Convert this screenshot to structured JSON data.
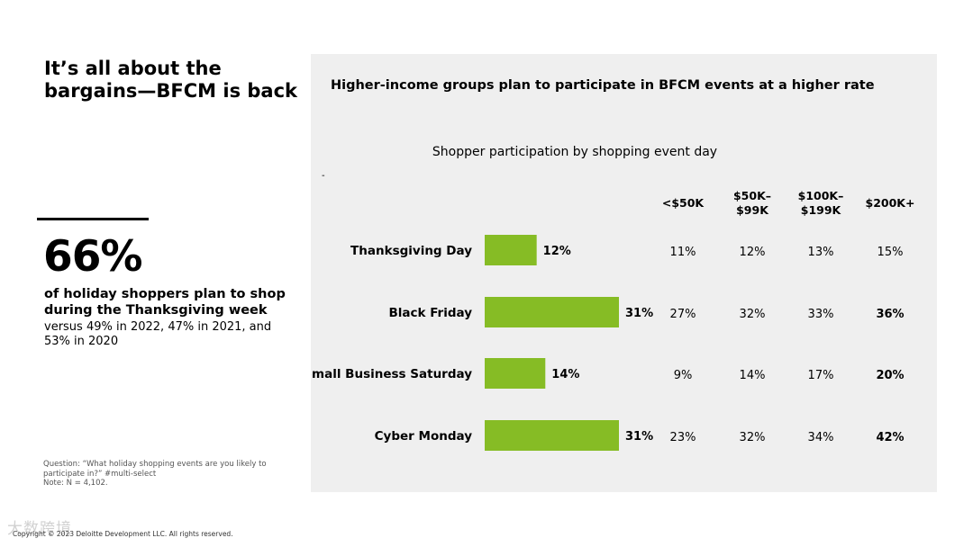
{
  "slide": {
    "title": "It’s all about the bargains—BFCM is back",
    "stat": "66%",
    "stat_lead": "of holiday shoppers plan to shop during the Thanksgiving week",
    "stat_sub": "versus 49% in 2022, 47% in 2021, and 53% in 2020",
    "note_question": "Question: “What holiday shopping events are you likely to participate in?” #multi-select",
    "note_n": "Note: N = 4,102.",
    "copyright": "Copyright © 2023 Deloitte Development LLC. All rights reserved.",
    "watermark": "大数跨境"
  },
  "panel": {
    "title": "Higher-income groups plan to participate in BFCM events at a higher rate",
    "dash": "-"
  },
  "chart_data": {
    "type": "bar",
    "orientation": "horizontal",
    "title": "Shopper participation by shopping event day",
    "categories": [
      "Thanksgiving Day",
      "Black Friday",
      "Small Business Saturday",
      "Cyber Monday"
    ],
    "values": [
      12,
      31,
      14,
      31
    ],
    "value_labels": [
      "12%",
      "31%",
      "14%",
      "31%"
    ],
    "xlim": [
      0,
      31
    ],
    "bar_color": "#86bc25",
    "table": {
      "columns": [
        "<$50K",
        "$50K–$99K",
        "$100K–$199K",
        "$200K+"
      ],
      "column_lines": [
        [
          "<$50K"
        ],
        [
          "$50K–",
          "$99K"
        ],
        [
          "$100K–",
          "$199K"
        ],
        [
          "$200K+"
        ]
      ],
      "rows": [
        [
          "11%",
          "12%",
          "13%",
          "15%"
        ],
        [
          "27%",
          "32%",
          "33%",
          "36%"
        ],
        [
          "9%",
          "14%",
          "17%",
          "20%"
        ],
        [
          "23%",
          "32%",
          "34%",
          "42%"
        ]
      ],
      "bold_cells": [
        [
          1,
          3
        ],
        [
          2,
          3
        ],
        [
          3,
          3
        ]
      ]
    }
  }
}
